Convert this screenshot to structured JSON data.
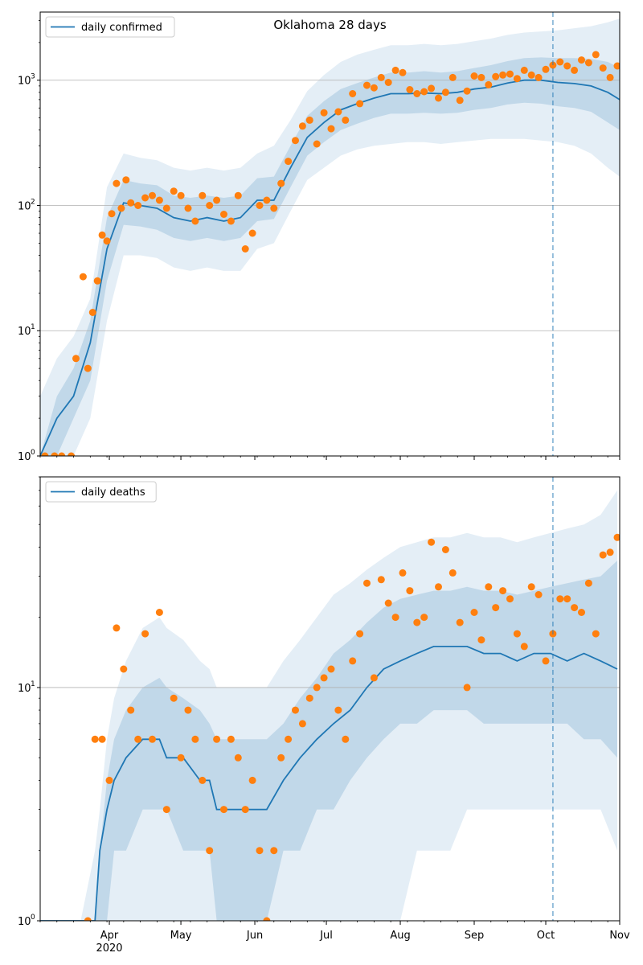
{
  "chart_data": [
    {
      "type": "line",
      "title": "Oklahoma 28 days",
      "yscale": "log",
      "ylim": [
        1,
        3500
      ],
      "x_range": [
        "2020-03-03",
        "2020-11-01"
      ],
      "y_ticks": [
        {
          "v": 1,
          "label": "10",
          "exp": "0"
        },
        {
          "v": 10,
          "label": "10",
          "exp": "1"
        },
        {
          "v": 100,
          "label": "10",
          "exp": "2"
        },
        {
          "v": 1000,
          "label": "10",
          "exp": "3"
        }
      ],
      "grid": "horizontal at decades",
      "forecast_start": "2020-10-04",
      "legend": {
        "placement": "top-left",
        "label": "daily confirmed"
      },
      "colors": {
        "line": "#1f77b4",
        "points": "#ff7f0e",
        "band": "#1f77b4"
      },
      "series": [
        {
          "name": "daily confirmed",
          "x": [
            "2020-03-03",
            "2020-03-10",
            "2020-03-17",
            "2020-03-24",
            "2020-03-31",
            "2020-04-07",
            "2020-04-14",
            "2020-04-21",
            "2020-04-28",
            "2020-05-05",
            "2020-05-12",
            "2020-05-19",
            "2020-05-26",
            "2020-06-02",
            "2020-06-09",
            "2020-06-16",
            "2020-06-23",
            "2020-06-30",
            "2020-07-07",
            "2020-07-14",
            "2020-07-21",
            "2020-07-28",
            "2020-08-04",
            "2020-08-11",
            "2020-08-18",
            "2020-08-25",
            "2020-09-01",
            "2020-09-08",
            "2020-09-15",
            "2020-09-22",
            "2020-09-29",
            "2020-10-06",
            "2020-10-13",
            "2020-10-20",
            "2020-10-27",
            "2020-11-01"
          ],
          "values": [
            1,
            2,
            3,
            8,
            45,
            105,
            100,
            95,
            80,
            75,
            80,
            75,
            80,
            110,
            110,
            200,
            350,
            460,
            580,
            650,
            720,
            780,
            780,
            790,
            780,
            800,
            850,
            880,
            950,
            1000,
            1000,
            960,
            940,
            900,
            800,
            700
          ]
        }
      ],
      "band_lower": [
        1,
        1,
        1,
        2,
        12,
        40,
        40,
        38,
        32,
        30,
        32,
        30,
        30,
        45,
        50,
        90,
        160,
        200,
        250,
        280,
        300,
        310,
        320,
        320,
        310,
        320,
        330,
        340,
        340,
        340,
        330,
        320,
        300,
        260,
        200,
        170
      ],
      "band_upper": [
        3,
        6,
        9,
        18,
        140,
        260,
        240,
        230,
        200,
        190,
        200,
        190,
        200,
        260,
        300,
        480,
        820,
        1100,
        1400,
        1600,
        1750,
        1900,
        1900,
        1950,
        1900,
        1950,
        2050,
        2150,
        2300,
        2400,
        2450,
        2500,
        2600,
        2700,
        2900,
        3100
      ],
      "band_inner_lower": [
        1,
        1,
        2,
        4,
        25,
        70,
        68,
        64,
        55,
        52,
        55,
        52,
        55,
        75,
        78,
        140,
        250,
        320,
        400,
        450,
        500,
        540,
        540,
        550,
        540,
        550,
        580,
        600,
        640,
        660,
        650,
        620,
        600,
        560,
        460,
        400
      ],
      "band_inner_upper": [
        1,
        3,
        5,
        12,
        80,
        160,
        150,
        145,
        120,
        115,
        120,
        115,
        120,
        165,
        170,
        300,
        520,
        680,
        850,
        950,
        1050,
        1150,
        1150,
        1180,
        1150,
        1180,
        1250,
        1320,
        1420,
        1500,
        1520,
        1500,
        1500,
        1480,
        1400,
        1250
      ],
      "observed": {
        "name": "observed daily confirmed",
        "x": [
          "2020-03-05",
          "2020-03-09",
          "2020-03-12",
          "2020-03-16",
          "2020-03-18",
          "2020-03-21",
          "2020-03-23",
          "2020-03-25",
          "2020-03-27",
          "2020-03-29",
          "2020-03-31",
          "2020-04-02",
          "2020-04-04",
          "2020-04-06",
          "2020-04-08",
          "2020-04-10",
          "2020-04-13",
          "2020-04-16",
          "2020-04-19",
          "2020-04-22",
          "2020-04-25",
          "2020-04-28",
          "2020-05-01",
          "2020-05-04",
          "2020-05-07",
          "2020-05-10",
          "2020-05-13",
          "2020-05-16",
          "2020-05-19",
          "2020-05-22",
          "2020-05-25",
          "2020-05-28",
          "2020-05-31",
          "2020-06-03",
          "2020-06-06",
          "2020-06-09",
          "2020-06-12",
          "2020-06-15",
          "2020-06-18",
          "2020-06-21",
          "2020-06-24",
          "2020-06-27",
          "2020-06-30",
          "2020-07-03",
          "2020-07-06",
          "2020-07-09",
          "2020-07-12",
          "2020-07-15",
          "2020-07-18",
          "2020-07-21",
          "2020-07-24",
          "2020-07-27",
          "2020-07-30",
          "2020-08-02",
          "2020-08-05",
          "2020-08-08",
          "2020-08-11",
          "2020-08-14",
          "2020-08-17",
          "2020-08-20",
          "2020-08-23",
          "2020-08-26",
          "2020-08-29",
          "2020-09-01",
          "2020-09-04",
          "2020-09-07",
          "2020-09-10",
          "2020-09-13",
          "2020-09-16",
          "2020-09-19",
          "2020-09-22",
          "2020-09-25",
          "2020-09-28",
          "2020-10-01",
          "2020-10-04",
          "2020-10-07",
          "2020-10-10",
          "2020-10-13",
          "2020-10-16",
          "2020-10-19",
          "2020-10-22",
          "2020-10-25",
          "2020-10-28",
          "2020-10-31"
        ],
        "values": [
          1,
          1,
          1,
          1,
          6,
          27,
          5,
          14,
          25,
          58,
          52,
          86,
          150,
          95,
          160,
          105,
          100,
          115,
          120,
          110,
          95,
          130,
          120,
          95,
          75,
          120,
          100,
          110,
          85,
          75,
          120,
          45,
          60,
          100,
          110,
          95,
          150,
          225,
          330,
          430,
          480,
          310,
          550,
          410,
          560,
          480,
          780,
          650,
          910,
          870,
          1050,
          960,
          1200,
          1150,
          840,
          780,
          810,
          860,
          720,
          800,
          1050,
          690,
          820,
          1080,
          1050,
          920,
          1070,
          1100,
          1120,
          1030,
          1200,
          1100,
          1050,
          1220,
          1320,
          1400,
          1300,
          1200,
          1450,
          1380,
          1600,
          1250,
          1050,
          1300
        ]
      }
    },
    {
      "type": "line",
      "yscale": "log",
      "ylim": [
        1,
        80
      ],
      "x_range": [
        "2020-03-03",
        "2020-11-01"
      ],
      "y_ticks": [
        {
          "v": 1,
          "label": "10",
          "exp": "0"
        },
        {
          "v": 10,
          "label": "10",
          "exp": "1"
        }
      ],
      "x_ticks": [
        {
          "date": "2020-04-01",
          "label": "Apr",
          "sub": "2020"
        },
        {
          "date": "2020-05-01",
          "label": "May",
          "sub": ""
        },
        {
          "date": "2020-06-01",
          "label": "Jun",
          "sub": ""
        },
        {
          "date": "2020-07-01",
          "label": "Jul",
          "sub": ""
        },
        {
          "date": "2020-08-01",
          "label": "Aug",
          "sub": ""
        },
        {
          "date": "2020-09-01",
          "label": "Sep",
          "sub": ""
        },
        {
          "date": "2020-10-01",
          "label": "Oct",
          "sub": ""
        },
        {
          "date": "2020-11-01",
          "label": "Nov",
          "sub": ""
        }
      ],
      "grid": "horizontal at decades",
      "forecast_start": "2020-10-04",
      "legend": {
        "placement": "top-left",
        "label": "daily deaths"
      },
      "colors": {
        "line": "#1f77b4",
        "points": "#ff7f0e",
        "band": "#1f77b4"
      },
      "series": [
        {
          "name": "daily deaths",
          "x": [
            "2020-03-03",
            "2020-03-20",
            "2020-03-26",
            "2020-03-28",
            "2020-03-31",
            "2020-04-03",
            "2020-04-08",
            "2020-04-15",
            "2020-04-22",
            "2020-04-25",
            "2020-05-02",
            "2020-05-09",
            "2020-05-13",
            "2020-05-16",
            "2020-05-23",
            "2020-05-30",
            "2020-06-06",
            "2020-06-13",
            "2020-06-20",
            "2020-06-27",
            "2020-07-04",
            "2020-07-11",
            "2020-07-18",
            "2020-07-25",
            "2020-08-01",
            "2020-08-08",
            "2020-08-15",
            "2020-08-22",
            "2020-08-29",
            "2020-09-05",
            "2020-09-12",
            "2020-09-19",
            "2020-09-26",
            "2020-10-03",
            "2020-10-10",
            "2020-10-17",
            "2020-10-24",
            "2020-10-31"
          ],
          "values": [
            1,
            1,
            1,
            2,
            3,
            4,
            5,
            6,
            6,
            5,
            5,
            4,
            4,
            3,
            3,
            3,
            3,
            4,
            5,
            6,
            7,
            8,
            10,
            12,
            13,
            14,
            15,
            15,
            15,
            14,
            14,
            13,
            14,
            14,
            13,
            14,
            13,
            12
          ]
        }
      ],
      "band_lower": [
        1,
        1,
        1,
        1,
        1,
        1,
        1,
        1,
        1,
        1,
        1,
        1,
        1,
        1,
        1,
        1,
        1,
        1,
        1,
        1,
        1,
        1,
        1,
        1,
        1,
        2,
        2,
        2,
        3,
        3,
        3,
        3,
        3,
        3,
        3,
        3,
        3,
        2
      ],
      "band_upper": [
        1,
        1,
        2,
        3,
        6,
        9,
        13,
        18,
        20,
        18,
        16,
        13,
        12,
        10,
        10,
        10,
        10,
        13,
        16,
        20,
        25,
        28,
        32,
        36,
        40,
        42,
        44,
        44,
        46,
        44,
        44,
        42,
        44,
        46,
        48,
        50,
        55,
        70
      ],
      "band_inner_lower": [
        1,
        1,
        1,
        1,
        1,
        2,
        2,
        3,
        3,
        3,
        2,
        2,
        2,
        1,
        1,
        1,
        1,
        2,
        2,
        3,
        3,
        4,
        5,
        6,
        7,
        7,
        8,
        8,
        8,
        7,
        7,
        7,
        7,
        7,
        7,
        6,
        6,
        5
      ],
      "band_inner_upper": [
        1,
        1,
        1,
        2,
        4,
        6,
        8,
        10,
        11,
        10,
        9,
        8,
        7,
        6,
        6,
        6,
        6,
        7,
        9,
        11,
        14,
        16,
        19,
        22,
        24,
        25,
        26,
        26,
        27,
        26,
        26,
        25,
        26,
        27,
        28,
        29,
        30,
        35
      ],
      "observed": {
        "name": "observed daily deaths",
        "x": [
          "2020-03-23",
          "2020-03-26",
          "2020-03-29",
          "2020-04-01",
          "2020-04-04",
          "2020-04-07",
          "2020-04-10",
          "2020-04-13",
          "2020-04-16",
          "2020-04-19",
          "2020-04-22",
          "2020-04-25",
          "2020-04-28",
          "2020-05-01",
          "2020-05-04",
          "2020-05-07",
          "2020-05-10",
          "2020-05-13",
          "2020-05-16",
          "2020-05-19",
          "2020-05-22",
          "2020-05-25",
          "2020-05-28",
          "2020-05-31",
          "2020-06-03",
          "2020-06-06",
          "2020-06-09",
          "2020-06-12",
          "2020-06-15",
          "2020-06-18",
          "2020-06-21",
          "2020-06-24",
          "2020-06-27",
          "2020-06-30",
          "2020-07-03",
          "2020-07-06",
          "2020-07-09",
          "2020-07-12",
          "2020-07-15",
          "2020-07-18",
          "2020-07-21",
          "2020-07-24",
          "2020-07-27",
          "2020-07-30",
          "2020-08-02",
          "2020-08-05",
          "2020-08-08",
          "2020-08-11",
          "2020-08-14",
          "2020-08-17",
          "2020-08-20",
          "2020-08-23",
          "2020-08-26",
          "2020-08-29",
          "2020-09-01",
          "2020-09-04",
          "2020-09-07",
          "2020-09-10",
          "2020-09-13",
          "2020-09-16",
          "2020-09-19",
          "2020-09-22",
          "2020-09-25",
          "2020-09-28",
          "2020-10-01",
          "2020-10-04",
          "2020-10-07",
          "2020-10-10",
          "2020-10-13",
          "2020-10-16",
          "2020-10-19",
          "2020-10-22",
          "2020-10-25",
          "2020-10-28",
          "2020-10-31"
        ],
        "values": [
          1,
          6,
          6,
          4,
          18,
          12,
          8,
          6,
          17,
          6,
          21,
          3,
          9,
          5,
          8,
          6,
          4,
          2,
          6,
          3,
          6,
          5,
          3,
          4,
          2,
          1,
          2,
          5,
          6,
          8,
          7,
          9,
          10,
          11,
          12,
          8,
          6,
          13,
          17,
          28,
          11,
          29,
          23,
          20,
          31,
          26,
          19,
          20,
          42,
          27,
          39,
          31,
          19,
          10,
          21,
          16,
          27,
          22,
          26,
          24,
          17,
          15,
          27,
          25,
          13,
          17,
          24,
          24,
          22,
          21,
          28,
          17,
          37,
          38,
          44
        ]
      }
    }
  ]
}
